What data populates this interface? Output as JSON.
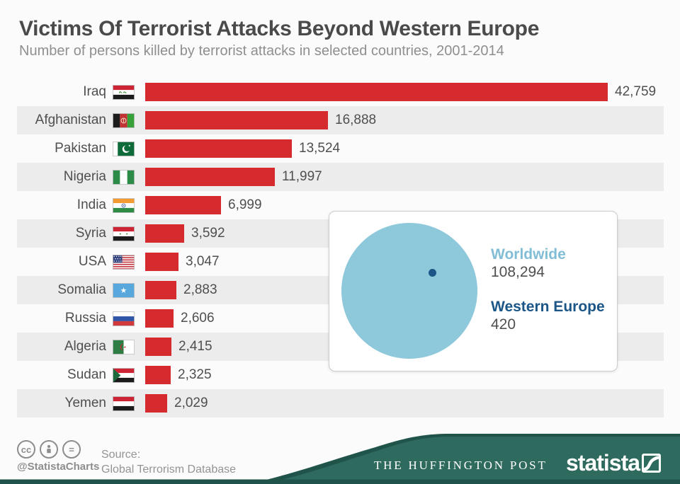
{
  "chart_data": {
    "type": "bar",
    "orientation": "horizontal",
    "title": "Victims Of Terrorist Attacks Beyond Western Europe",
    "subtitle": "Number of persons killed by terrorist attacks in selected countries, 2001-2014",
    "categories": [
      "Iraq",
      "Afghanistan",
      "Pakistan",
      "Nigeria",
      "India",
      "Syria",
      "USA",
      "Somalia",
      "Russia",
      "Algeria",
      "Sudan",
      "Yemen"
    ],
    "values": [
      42759,
      16888,
      13524,
      11997,
      6999,
      3592,
      3047,
      2883,
      2606,
      2415,
      2325,
      2029
    ],
    "display_values": [
      "42,759",
      "16,888",
      "13,524",
      "11,997",
      "6,999",
      "3,592",
      "3,047",
      "2,883",
      "2,606",
      "2,415",
      "2,325",
      "2,029"
    ],
    "flags": [
      "iraq-flag",
      "afghanistan-flag",
      "pakistan-flag",
      "nigeria-flag",
      "india-flag",
      "syria-flag",
      "usa-flag",
      "somalia-flag",
      "russia-flag",
      "algeria-flag",
      "sudan-flag",
      "yemen-flag"
    ],
    "xlim": [
      0,
      45000
    ],
    "grid": false,
    "legend": false,
    "annotation": {
      "worldwide_label": "Worldwide",
      "worldwide_display": "108,294",
      "worldwide_value": 108294,
      "western_europe_label": "Western Europe",
      "western_europe_display": "420",
      "western_europe_value": 420
    }
  },
  "footer": {
    "license_cc_glyph": "cc",
    "license_equals_glyph": "=",
    "handle": "@StatistaCharts",
    "source_label": "Source:",
    "source_name": "Global Terrorism Database",
    "partner": "THE HUFFINGTON POST",
    "brand": "statista"
  },
  "colors": {
    "bar": "#d52b2e",
    "row_alt": "#ececec",
    "page_bg": "#fbfbfb",
    "circle": "#8ec8db",
    "light_blue": "#82bdd6",
    "dark_blue": "#1b5687",
    "green": "#2f6a5e",
    "green_dark": "#20544a",
    "text": "#4f4f4f"
  }
}
